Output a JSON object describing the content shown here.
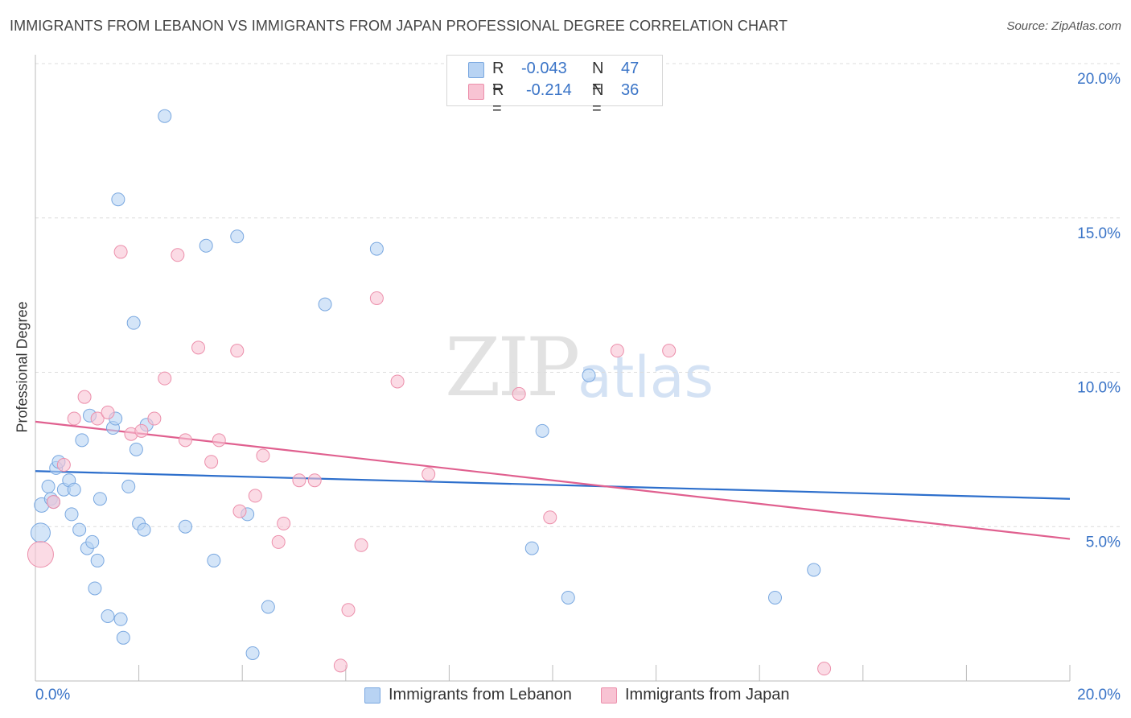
{
  "title": "IMMIGRANTS FROM LEBANON VS IMMIGRANTS FROM JAPAN PROFESSIONAL DEGREE CORRELATION CHART",
  "source": "Source: ZipAtlas.com",
  "watermark": {
    "zip": "ZIP",
    "atlas": "atlas"
  },
  "legend": {
    "lebanon": {
      "r_label": "R =",
      "r_value": "-0.043",
      "n_label": "N =",
      "n_value": "47"
    },
    "japan": {
      "r_label": "R =",
      "r_value": "-0.214",
      "n_label": "N =",
      "n_value": "36"
    }
  },
  "colors": {
    "lebanon_fill": "#b8d3f3",
    "lebanon_stroke": "#7aa8e0",
    "lebanon_line": "#2d6fcc",
    "japan_fill": "#f8c3d3",
    "japan_stroke": "#ec8fab",
    "japan_line": "#e0608f",
    "axis_label": "#3a74c7",
    "grid": "#dcdcdc"
  },
  "chart_data": {
    "type": "scatter",
    "title": "IMMIGRANTS FROM LEBANON VS IMMIGRANTS FROM JAPAN PROFESSIONAL DEGREE CORRELATION CHART",
    "xlabel": "",
    "ylabel": "Professional Degree",
    "xlim": [
      0,
      20
    ],
    "ylim": [
      0,
      20
    ],
    "x_tick_labels": [
      "0.0%",
      "20.0%"
    ],
    "y_ticks": [
      5,
      10,
      15,
      20
    ],
    "y_tick_labels": [
      "5.0%",
      "10.0%",
      "15.0%",
      "20.0%"
    ],
    "grid": true,
    "legend_position": "bottom",
    "series": [
      {
        "name": "Immigrants from Lebanon",
        "r": -0.043,
        "n": 47,
        "trend": {
          "x": [
            0,
            20
          ],
          "y": [
            6.8,
            5.9
          ]
        },
        "points": [
          {
            "x": 0.1,
            "y": 4.8,
            "s": 12
          },
          {
            "x": 0.12,
            "y": 5.7,
            "s": 9
          },
          {
            "x": 0.25,
            "y": 6.3,
            "s": 8
          },
          {
            "x": 0.3,
            "y": 5.9,
            "s": 8
          },
          {
            "x": 0.35,
            "y": 5.8,
            "s": 8
          },
          {
            "x": 0.4,
            "y": 6.9,
            "s": 8
          },
          {
            "x": 0.45,
            "y": 7.1,
            "s": 8
          },
          {
            "x": 0.55,
            "y": 6.2,
            "s": 8
          },
          {
            "x": 0.65,
            "y": 6.5,
            "s": 8
          },
          {
            "x": 0.7,
            "y": 5.4,
            "s": 8
          },
          {
            "x": 0.75,
            "y": 6.2,
            "s": 8
          },
          {
            "x": 0.85,
            "y": 4.9,
            "s": 8
          },
          {
            "x": 0.9,
            "y": 7.8,
            "s": 8
          },
          {
            "x": 1.0,
            "y": 4.3,
            "s": 8
          },
          {
            "x": 1.05,
            "y": 8.6,
            "s": 8
          },
          {
            "x": 1.1,
            "y": 4.5,
            "s": 8
          },
          {
            "x": 1.2,
            "y": 3.9,
            "s": 8
          },
          {
            "x": 1.25,
            "y": 5.9,
            "s": 8
          },
          {
            "x": 1.15,
            "y": 3.0,
            "s": 8
          },
          {
            "x": 1.4,
            "y": 2.1,
            "s": 8
          },
          {
            "x": 1.5,
            "y": 8.2,
            "s": 8
          },
          {
            "x": 1.55,
            "y": 8.5,
            "s": 8
          },
          {
            "x": 1.6,
            "y": 15.6,
            "s": 8
          },
          {
            "x": 1.65,
            "y": 2.0,
            "s": 8
          },
          {
            "x": 1.7,
            "y": 1.4,
            "s": 8
          },
          {
            "x": 1.8,
            "y": 6.3,
            "s": 8
          },
          {
            "x": 1.9,
            "y": 11.6,
            "s": 8
          },
          {
            "x": 1.95,
            "y": 7.5,
            "s": 8
          },
          {
            "x": 2.0,
            "y": 5.1,
            "s": 8
          },
          {
            "x": 2.1,
            "y": 4.9,
            "s": 8
          },
          {
            "x": 2.15,
            "y": 8.3,
            "s": 8
          },
          {
            "x": 2.5,
            "y": 18.3,
            "s": 8
          },
          {
            "x": 2.9,
            "y": 5.0,
            "s": 8
          },
          {
            "x": 3.3,
            "y": 14.1,
            "s": 8
          },
          {
            "x": 3.45,
            "y": 3.9,
            "s": 8
          },
          {
            "x": 3.9,
            "y": 14.4,
            "s": 8
          },
          {
            "x": 4.1,
            "y": 5.4,
            "s": 8
          },
          {
            "x": 4.2,
            "y": 0.9,
            "s": 8
          },
          {
            "x": 4.5,
            "y": 2.4,
            "s": 8
          },
          {
            "x": 5.6,
            "y": 12.2,
            "s": 8
          },
          {
            "x": 6.6,
            "y": 14.0,
            "s": 8
          },
          {
            "x": 9.6,
            "y": 4.3,
            "s": 8
          },
          {
            "x": 9.8,
            "y": 8.1,
            "s": 8
          },
          {
            "x": 10.3,
            "y": 2.7,
            "s": 8
          },
          {
            "x": 10.7,
            "y": 9.9,
            "s": 8
          },
          {
            "x": 14.3,
            "y": 2.7,
            "s": 8
          },
          {
            "x": 15.05,
            "y": 3.6,
            "s": 8
          }
        ]
      },
      {
        "name": "Immigrants from Japan",
        "r": -0.214,
        "n": 36,
        "trend": {
          "x": [
            0,
            20
          ],
          "y": [
            8.4,
            4.6
          ]
        },
        "points": [
          {
            "x": 0.1,
            "y": 4.1,
            "s": 16
          },
          {
            "x": 0.35,
            "y": 5.8,
            "s": 8
          },
          {
            "x": 0.55,
            "y": 7.0,
            "s": 8
          },
          {
            "x": 0.75,
            "y": 8.5,
            "s": 8
          },
          {
            "x": 0.95,
            "y": 9.2,
            "s": 8
          },
          {
            "x": 1.2,
            "y": 8.5,
            "s": 8
          },
          {
            "x": 1.4,
            "y": 8.7,
            "s": 8
          },
          {
            "x": 1.65,
            "y": 13.9,
            "s": 8
          },
          {
            "x": 1.85,
            "y": 8.0,
            "s": 8
          },
          {
            "x": 2.05,
            "y": 8.1,
            "s": 8
          },
          {
            "x": 2.3,
            "y": 8.5,
            "s": 8
          },
          {
            "x": 2.5,
            "y": 9.8,
            "s": 8
          },
          {
            "x": 2.75,
            "y": 13.8,
            "s": 8
          },
          {
            "x": 2.9,
            "y": 7.8,
            "s": 8
          },
          {
            "x": 3.15,
            "y": 10.8,
            "s": 8
          },
          {
            "x": 3.4,
            "y": 7.1,
            "s": 8
          },
          {
            "x": 3.55,
            "y": 7.8,
            "s": 8
          },
          {
            "x": 3.9,
            "y": 10.7,
            "s": 8
          },
          {
            "x": 3.95,
            "y": 5.5,
            "s": 8
          },
          {
            "x": 4.25,
            "y": 6.0,
            "s": 8
          },
          {
            "x": 4.4,
            "y": 7.3,
            "s": 8
          },
          {
            "x": 4.7,
            "y": 4.5,
            "s": 8
          },
          {
            "x": 4.8,
            "y": 5.1,
            "s": 8
          },
          {
            "x": 5.1,
            "y": 6.5,
            "s": 8
          },
          {
            "x": 5.4,
            "y": 6.5,
            "s": 8
          },
          {
            "x": 5.9,
            "y": 0.5,
            "s": 8
          },
          {
            "x": 6.05,
            "y": 2.3,
            "s": 8
          },
          {
            "x": 6.3,
            "y": 4.4,
            "s": 8
          },
          {
            "x": 6.6,
            "y": 12.4,
            "s": 8
          },
          {
            "x": 7.0,
            "y": 9.7,
            "s": 8
          },
          {
            "x": 7.6,
            "y": 6.7,
            "s": 8
          },
          {
            "x": 9.35,
            "y": 9.3,
            "s": 8
          },
          {
            "x": 9.95,
            "y": 5.3,
            "s": 8
          },
          {
            "x": 11.25,
            "y": 10.7,
            "s": 8
          },
          {
            "x": 12.25,
            "y": 10.7,
            "s": 8
          },
          {
            "x": 15.25,
            "y": 0.4,
            "s": 8
          }
        ]
      }
    ]
  }
}
